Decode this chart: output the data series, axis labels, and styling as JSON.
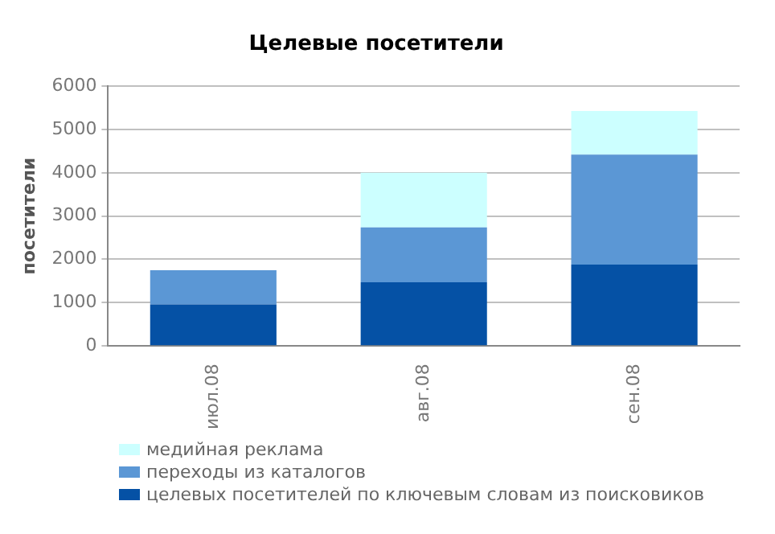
{
  "chart_data": {
    "type": "bar",
    "title": "Целевые посетители",
    "ylabel": "посетители",
    "categories": [
      "июл.08",
      "авг.08",
      "сен.08"
    ],
    "stacked": true,
    "series": [
      {
        "name": "целевых посетителей по ключевым словам из поисковиков",
        "color": "#0551a5",
        "values": [
          960,
          1470,
          1880
        ]
      },
      {
        "name": "переходы из каталогов",
        "color": "#5b97d5",
        "values": [
          790,
          1270,
          2540
        ]
      },
      {
        "name": "медийная реклама",
        "color": "#ccffff",
        "values": [
          null,
          1260,
          1010
        ]
      }
    ],
    "ylim": [
      0,
      6000
    ],
    "yticks": [
      0,
      1000,
      2000,
      3000,
      4000,
      5000,
      6000
    ],
    "grid": "y",
    "legend": "bottom"
  }
}
